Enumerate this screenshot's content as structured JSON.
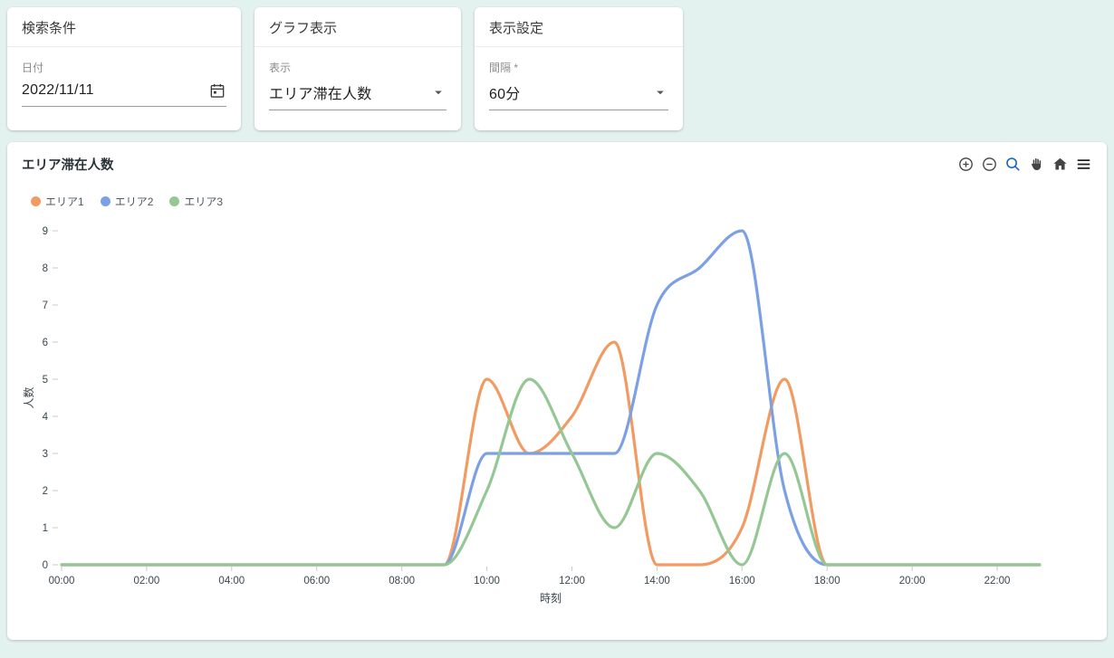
{
  "search_card": {
    "title": "検索条件",
    "date_label": "日付",
    "date_value": "2022/11/11"
  },
  "graph_card": {
    "title": "グラフ表示",
    "display_label": "表示",
    "display_value": "エリア滞在人数"
  },
  "settings_card": {
    "title": "表示設定",
    "interval_label": "間隔 *",
    "interval_value": "60分"
  },
  "chart_card": {
    "title": "エリア滞在人数",
    "toolbar_icons": [
      "zoom-in",
      "zoom-out",
      "magnifier",
      "pan-hand",
      "home",
      "menu"
    ],
    "magnifier_active_color": "#1565c0",
    "toolbar_icon_color": "#444444"
  },
  "chart_data": {
    "type": "line",
    "title": "エリア滞在人数",
    "xlabel": "時刻",
    "ylabel": "人数",
    "ylim": [
      0,
      9
    ],
    "grid": false,
    "legend_position": "top-left",
    "x": [
      "00:00",
      "01:00",
      "02:00",
      "03:00",
      "04:00",
      "05:00",
      "06:00",
      "07:00",
      "08:00",
      "09:00",
      "10:00",
      "11:00",
      "12:00",
      "13:00",
      "14:00",
      "15:00",
      "16:00",
      "17:00",
      "18:00",
      "19:00",
      "20:00",
      "21:00",
      "22:00",
      "23:00"
    ],
    "x_ticks": [
      "00:00",
      "02:00",
      "04:00",
      "06:00",
      "08:00",
      "10:00",
      "12:00",
      "14:00",
      "16:00",
      "18:00",
      "20:00",
      "22:00"
    ],
    "y_ticks": [
      0,
      1,
      2,
      3,
      4,
      5,
      6,
      7,
      8,
      9
    ],
    "series": [
      {
        "name": "エリア1",
        "color": "#f19b63",
        "values": [
          0,
          0,
          0,
          0,
          0,
          0,
          0,
          0,
          0,
          0,
          5,
          3,
          4,
          6,
          0,
          0,
          1,
          5,
          0,
          0,
          0,
          0,
          0,
          0
        ]
      },
      {
        "name": "エリア2",
        "color": "#7ba0e4",
        "values": [
          0,
          0,
          0,
          0,
          0,
          0,
          0,
          0,
          0,
          0,
          3,
          3,
          3,
          3,
          7,
          8,
          9,
          2,
          0,
          0,
          0,
          0,
          0,
          0
        ]
      },
      {
        "name": "エリア3",
        "color": "#95c795",
        "values": [
          0,
          0,
          0,
          0,
          0,
          0,
          0,
          0,
          0,
          0,
          2,
          5,
          3,
          1,
          3,
          2,
          0,
          3,
          0,
          0,
          0,
          0,
          0,
          0
        ]
      }
    ]
  }
}
